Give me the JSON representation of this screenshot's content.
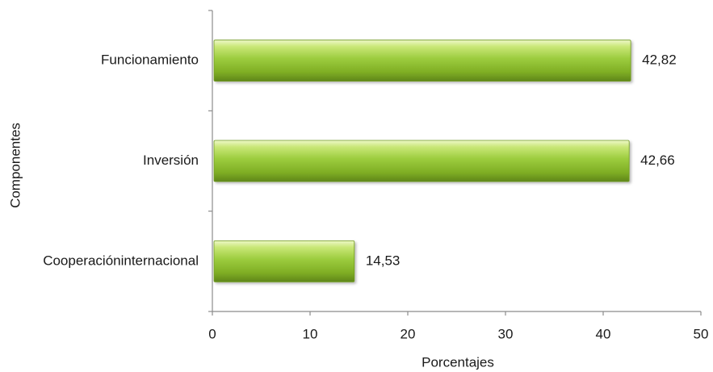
{
  "chart_data": {
    "type": "bar",
    "orientation": "horizontal",
    "categories": [
      "Funcionamiento",
      "Inversión",
      "Cooperacióninternacional"
    ],
    "values": [
      42.82,
      42.66,
      14.53
    ],
    "value_labels": [
      "42,82",
      "42,66",
      "14,53"
    ],
    "xlabel": "Porcentajes",
    "ylabel": "Componentes",
    "xlim": [
      0,
      50
    ],
    "xticks": [
      0,
      10,
      20,
      30,
      40,
      50
    ],
    "xtick_labels": [
      "0",
      "10",
      "20",
      "30",
      "40",
      "50"
    ],
    "grid": false,
    "bar_color": "#8fbf2f"
  }
}
